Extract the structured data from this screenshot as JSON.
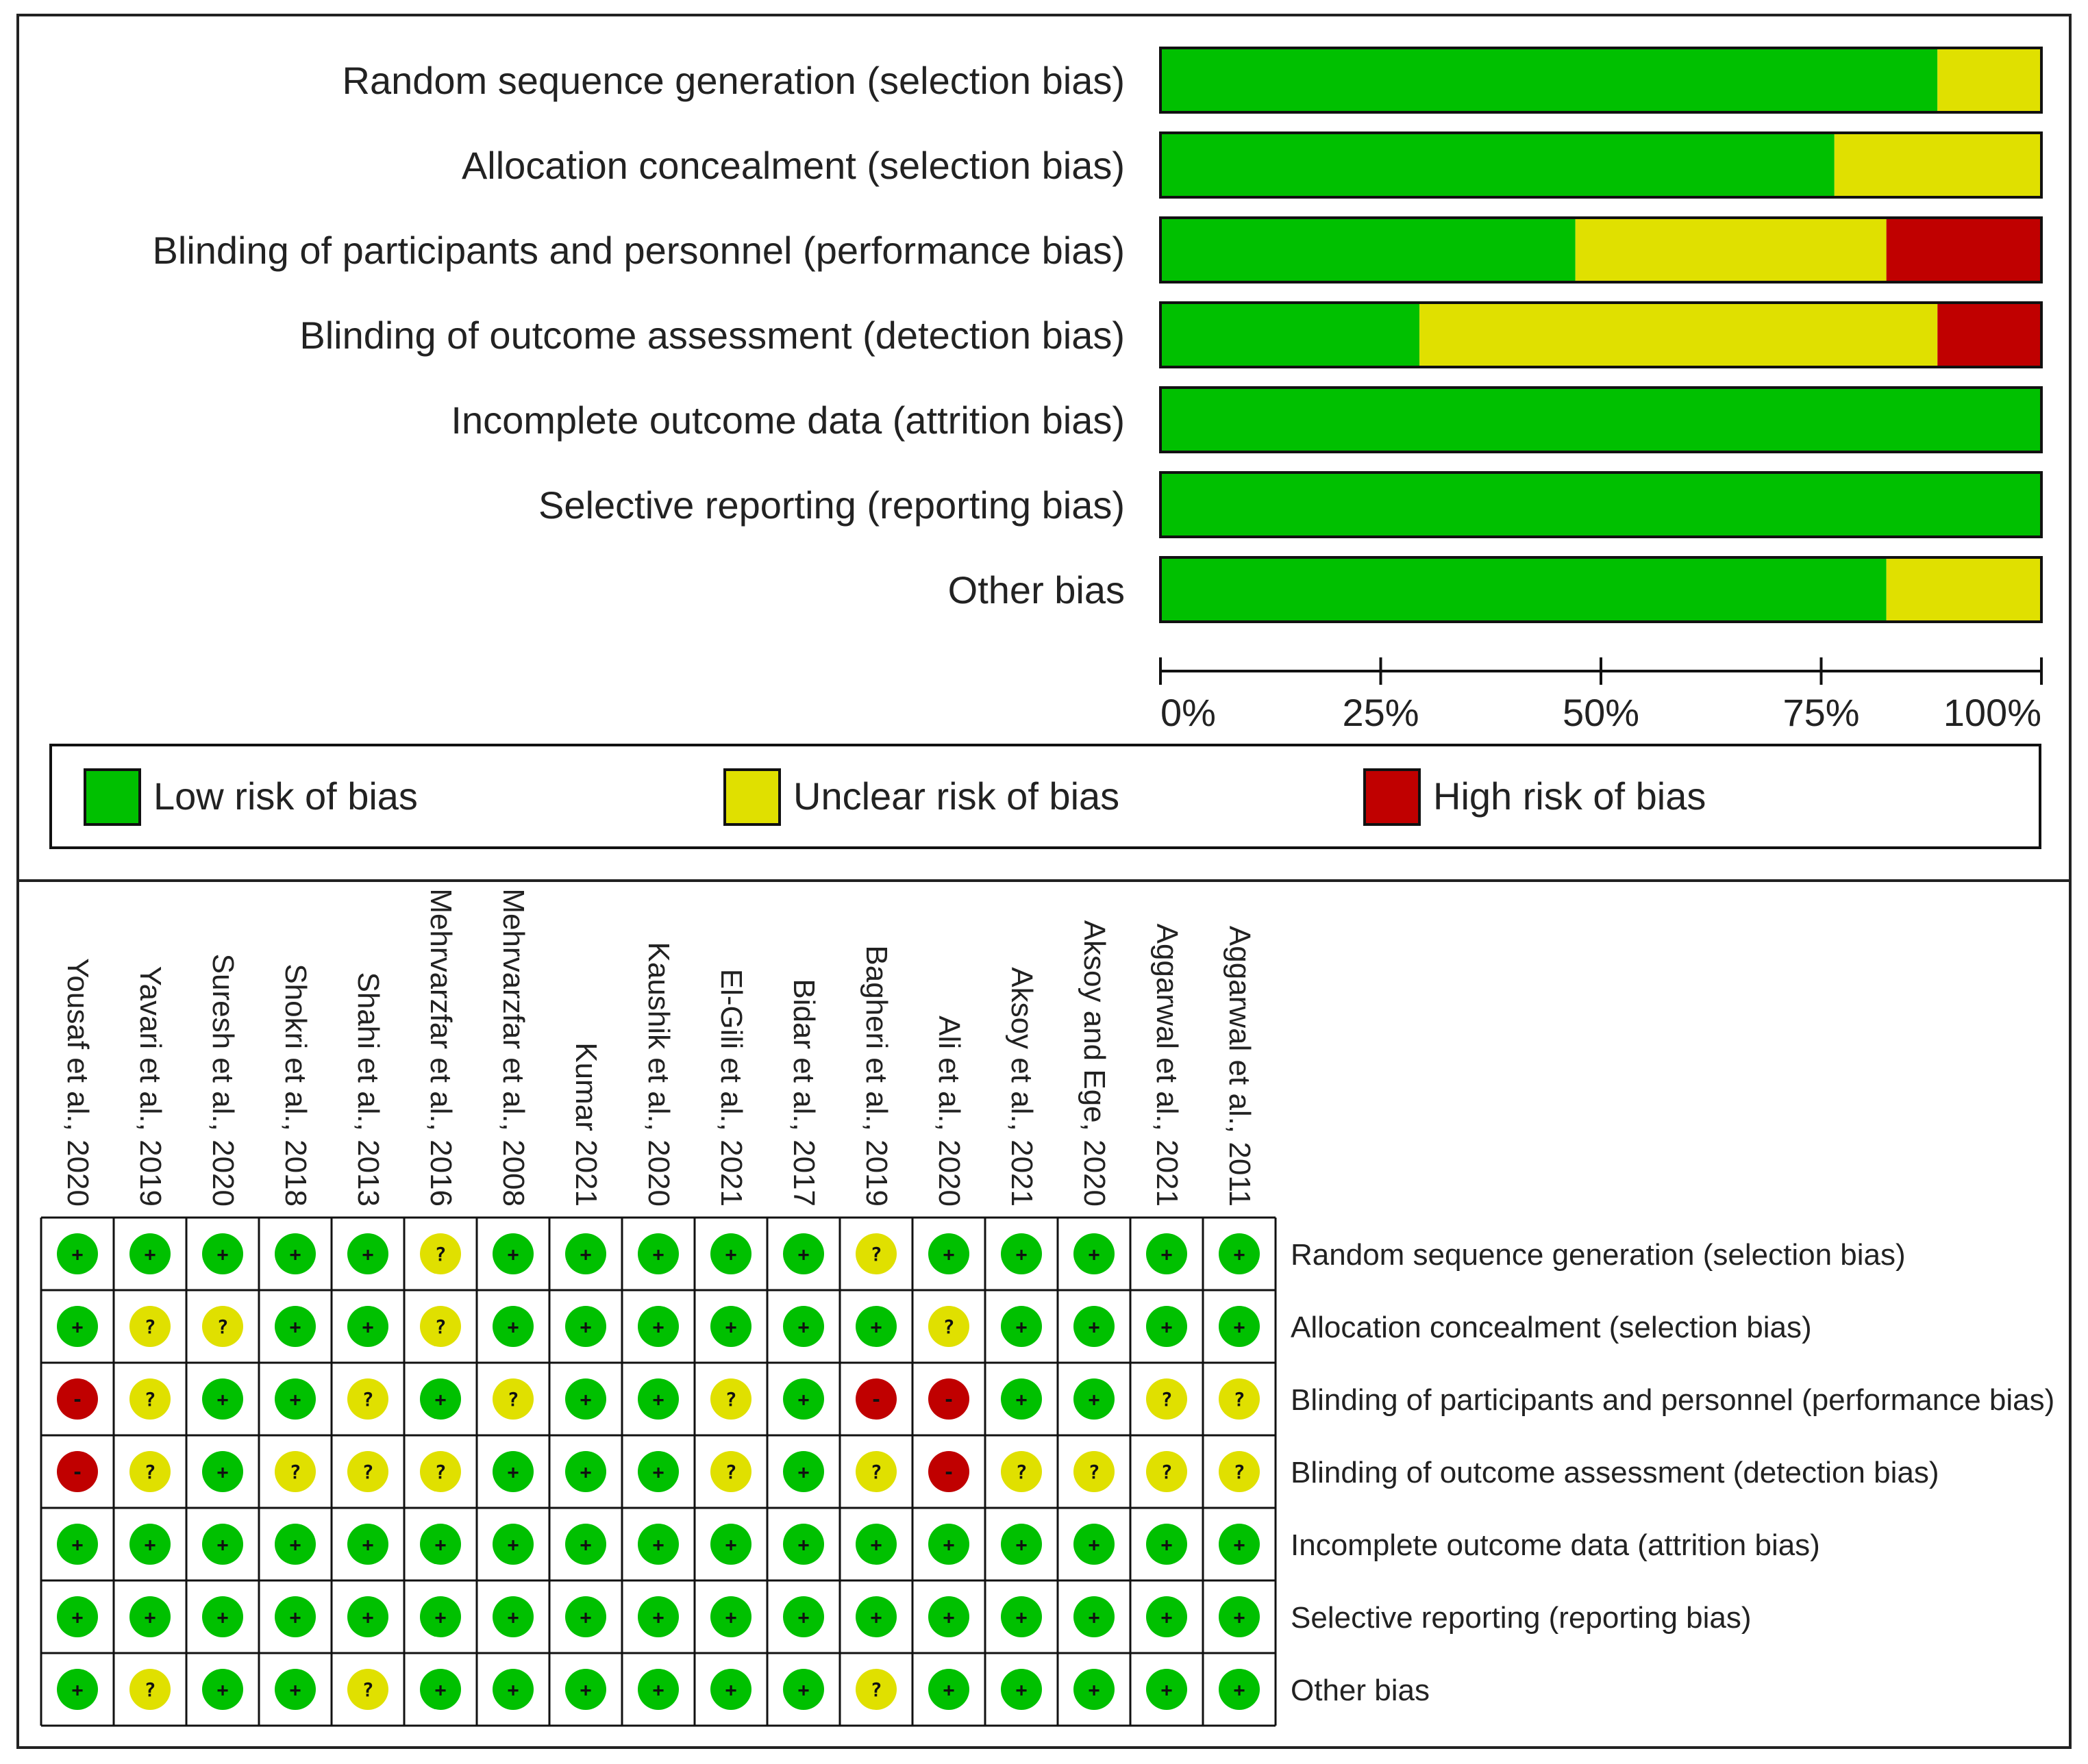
{
  "colors": {
    "low": "#00C000",
    "unclear": "#E0E000",
    "high": "#C00000"
  },
  "chart_data": [
    {
      "type": "bar",
      "orientation": "horizontal-stacked-percent",
      "categories": [
        "Random sequence generation (selection bias)",
        "Allocation concealment (selection bias)",
        "Blinding of participants and personnel (performance bias)",
        "Blinding of outcome assessment (detection bias)",
        "Incomplete outcome data (attrition bias)",
        "Selective reporting (reporting bias)",
        "Other bias"
      ],
      "series": [
        {
          "name": "Low risk of bias",
          "key": "low",
          "values": [
            88.2,
            76.5,
            47.1,
            29.4,
            100,
            100,
            82.4
          ]
        },
        {
          "name": "Unclear risk of bias",
          "key": "unclear",
          "values": [
            11.8,
            23.5,
            35.3,
            58.8,
            0,
            0,
            17.6
          ]
        },
        {
          "name": "High risk of bias",
          "key": "high",
          "values": [
            0,
            0,
            17.6,
            11.8,
            0,
            0,
            0
          ]
        }
      ],
      "xlim": [
        0,
        100
      ],
      "ticks": [
        "0%",
        "25%",
        "50%",
        "75%",
        "100%"
      ],
      "legend": [
        "Low risk of bias",
        "Unclear risk of bias",
        "High risk of bias"
      ]
    },
    {
      "type": "table",
      "studies": [
        "Yousaf et al., 2020",
        "Yavari et al., 2019",
        "Suresh et al., 2020",
        "Shokri et al., 2018",
        "Shahi et al., 2013",
        "Mehrvarzfar et al., 2016",
        "Mehrvarzfar et al., 2008",
        "Kumar 2021",
        "Kaushik et al., 2020",
        "El-Gili et al., 2021",
        "Bidar et al., 2017",
        "Bagheri et al., 2019",
        "Ali et al., 2020",
        "Aksoy et al., 2021",
        "Aksoy and Ege, 2020",
        "Aggarwal et al., 2021",
        "Aggarwal et al., 2011"
      ],
      "domains": [
        "Random sequence generation (selection bias)",
        "Allocation concealment (selection bias)",
        "Blinding of participants and personnel (performance bias)",
        "Blinding of outcome assessment (detection bias)",
        "Incomplete outcome data (attrition bias)",
        "Selective reporting (reporting bias)",
        "Other bias"
      ],
      "judgements": [
        [
          "+",
          "+",
          "+",
          "+",
          "+",
          "?",
          "+",
          "+",
          "+",
          "+",
          "+",
          "?",
          "+",
          "+",
          "+",
          "+",
          "+"
        ],
        [
          "+",
          "?",
          "?",
          "+",
          "+",
          "?",
          "+",
          "+",
          "+",
          "+",
          "+",
          "+",
          "?",
          "+",
          "+",
          "+",
          "+"
        ],
        [
          "-",
          "?",
          "+",
          "+",
          "?",
          "+",
          "?",
          "+",
          "+",
          "?",
          "+",
          "-",
          "-",
          "+",
          "+",
          "?",
          "?"
        ],
        [
          "-",
          "?",
          "+",
          "?",
          "?",
          "?",
          "+",
          "+",
          "+",
          "?",
          "+",
          "?",
          "-",
          "?",
          "?",
          "?",
          "?"
        ],
        [
          "+",
          "+",
          "+",
          "+",
          "+",
          "+",
          "+",
          "+",
          "+",
          "+",
          "+",
          "+",
          "+",
          "+",
          "+",
          "+",
          "+"
        ],
        [
          "+",
          "+",
          "+",
          "+",
          "+",
          "+",
          "+",
          "+",
          "+",
          "+",
          "+",
          "+",
          "+",
          "+",
          "+",
          "+",
          "+"
        ],
        [
          "+",
          "?",
          "+",
          "+",
          "?",
          "+",
          "+",
          "+",
          "+",
          "+",
          "+",
          "?",
          "+",
          "+",
          "+",
          "+",
          "+"
        ]
      ],
      "symbol_legend": {
        "+": "low",
        "?": "unclear",
        "-": "high"
      }
    }
  ]
}
